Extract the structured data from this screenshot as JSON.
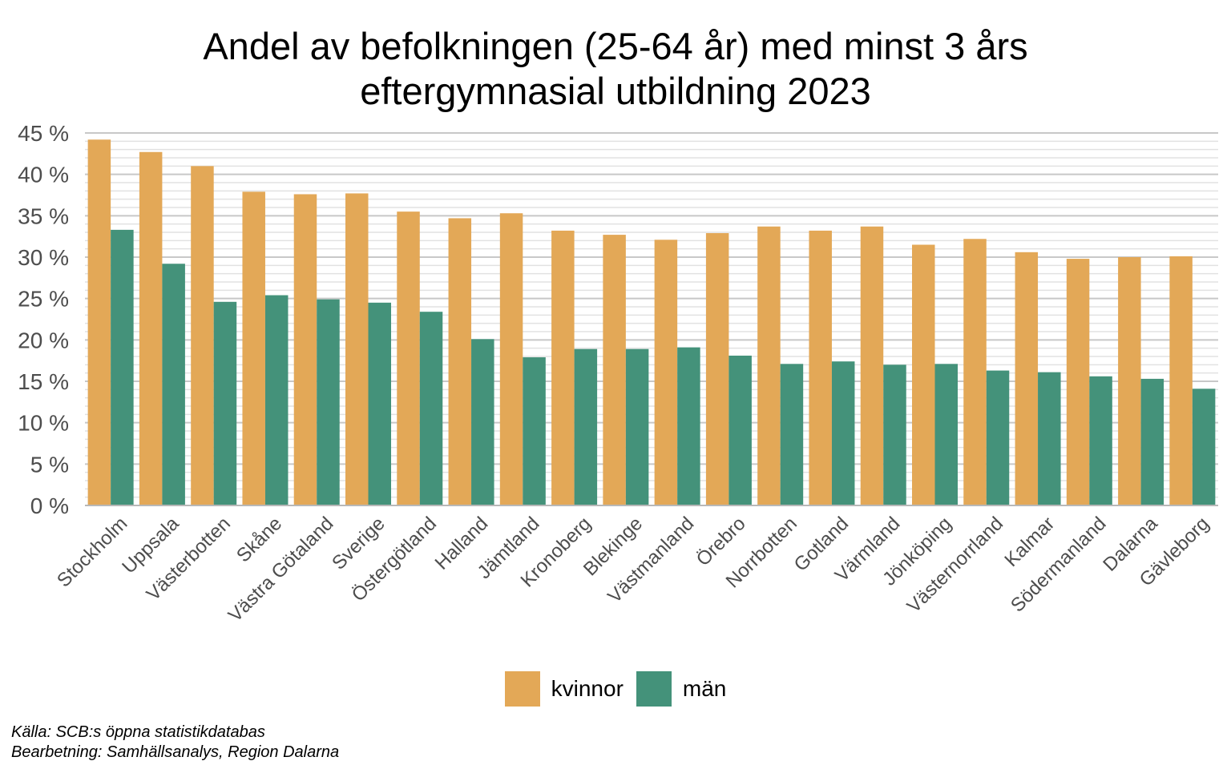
{
  "chart_data": {
    "type": "bar",
    "title_lines": [
      "Andel av befolkningen (25-64 år) med minst 3 års",
      "eftergymnasial utbildning 2023"
    ],
    "xlabel": "",
    "ylabel": "",
    "ylim": [
      0,
      45
    ],
    "y_ticks": [
      0,
      5,
      10,
      15,
      20,
      25,
      30,
      35,
      40,
      45
    ],
    "y_tick_labels": [
      "0 %",
      "5 %",
      "10 %",
      "15 %",
      "20 %",
      "25 %",
      "30 %",
      "35 %",
      "40 %",
      "45 %"
    ],
    "grid": true,
    "legend_position": "bottom",
    "categories": [
      "Stockholm",
      "Uppsala",
      "Västerbotten",
      "Skåne",
      "Västra Götaland",
      "Sverige",
      "Östergötland",
      "Halland",
      "Jämtland",
      "Kronoberg",
      "Blekinge",
      "Västmanland",
      "Örebro",
      "Norrbotten",
      "Gotland",
      "Värmland",
      "Jönköping",
      "Västernorrland",
      "Kalmar",
      "Södermanland",
      "Dalarna",
      "Gävleborg"
    ],
    "series": [
      {
        "name": "kvinnor",
        "color": "#E3A857",
        "values": [
          44.2,
          42.7,
          41.0,
          37.9,
          37.6,
          37.7,
          35.5,
          34.7,
          35.3,
          33.2,
          32.7,
          32.1,
          32.9,
          33.7,
          33.2,
          33.7,
          31.5,
          32.2,
          30.6,
          29.8,
          30.0,
          30.1
        ]
      },
      {
        "name": "män",
        "color": "#44927A",
        "values": [
          33.3,
          29.2,
          24.6,
          25.4,
          24.9,
          24.5,
          23.4,
          20.1,
          17.9,
          18.9,
          18.9,
          19.1,
          18.1,
          17.1,
          17.4,
          17.0,
          17.1,
          16.3,
          16.1,
          15.6,
          15.3,
          14.1
        ]
      }
    ]
  },
  "notes": {
    "source": "Källa: SCB:s öppna statistikdatabas",
    "processing": "Bearbetning: Samhällsanalys, Region Dalarna"
  }
}
